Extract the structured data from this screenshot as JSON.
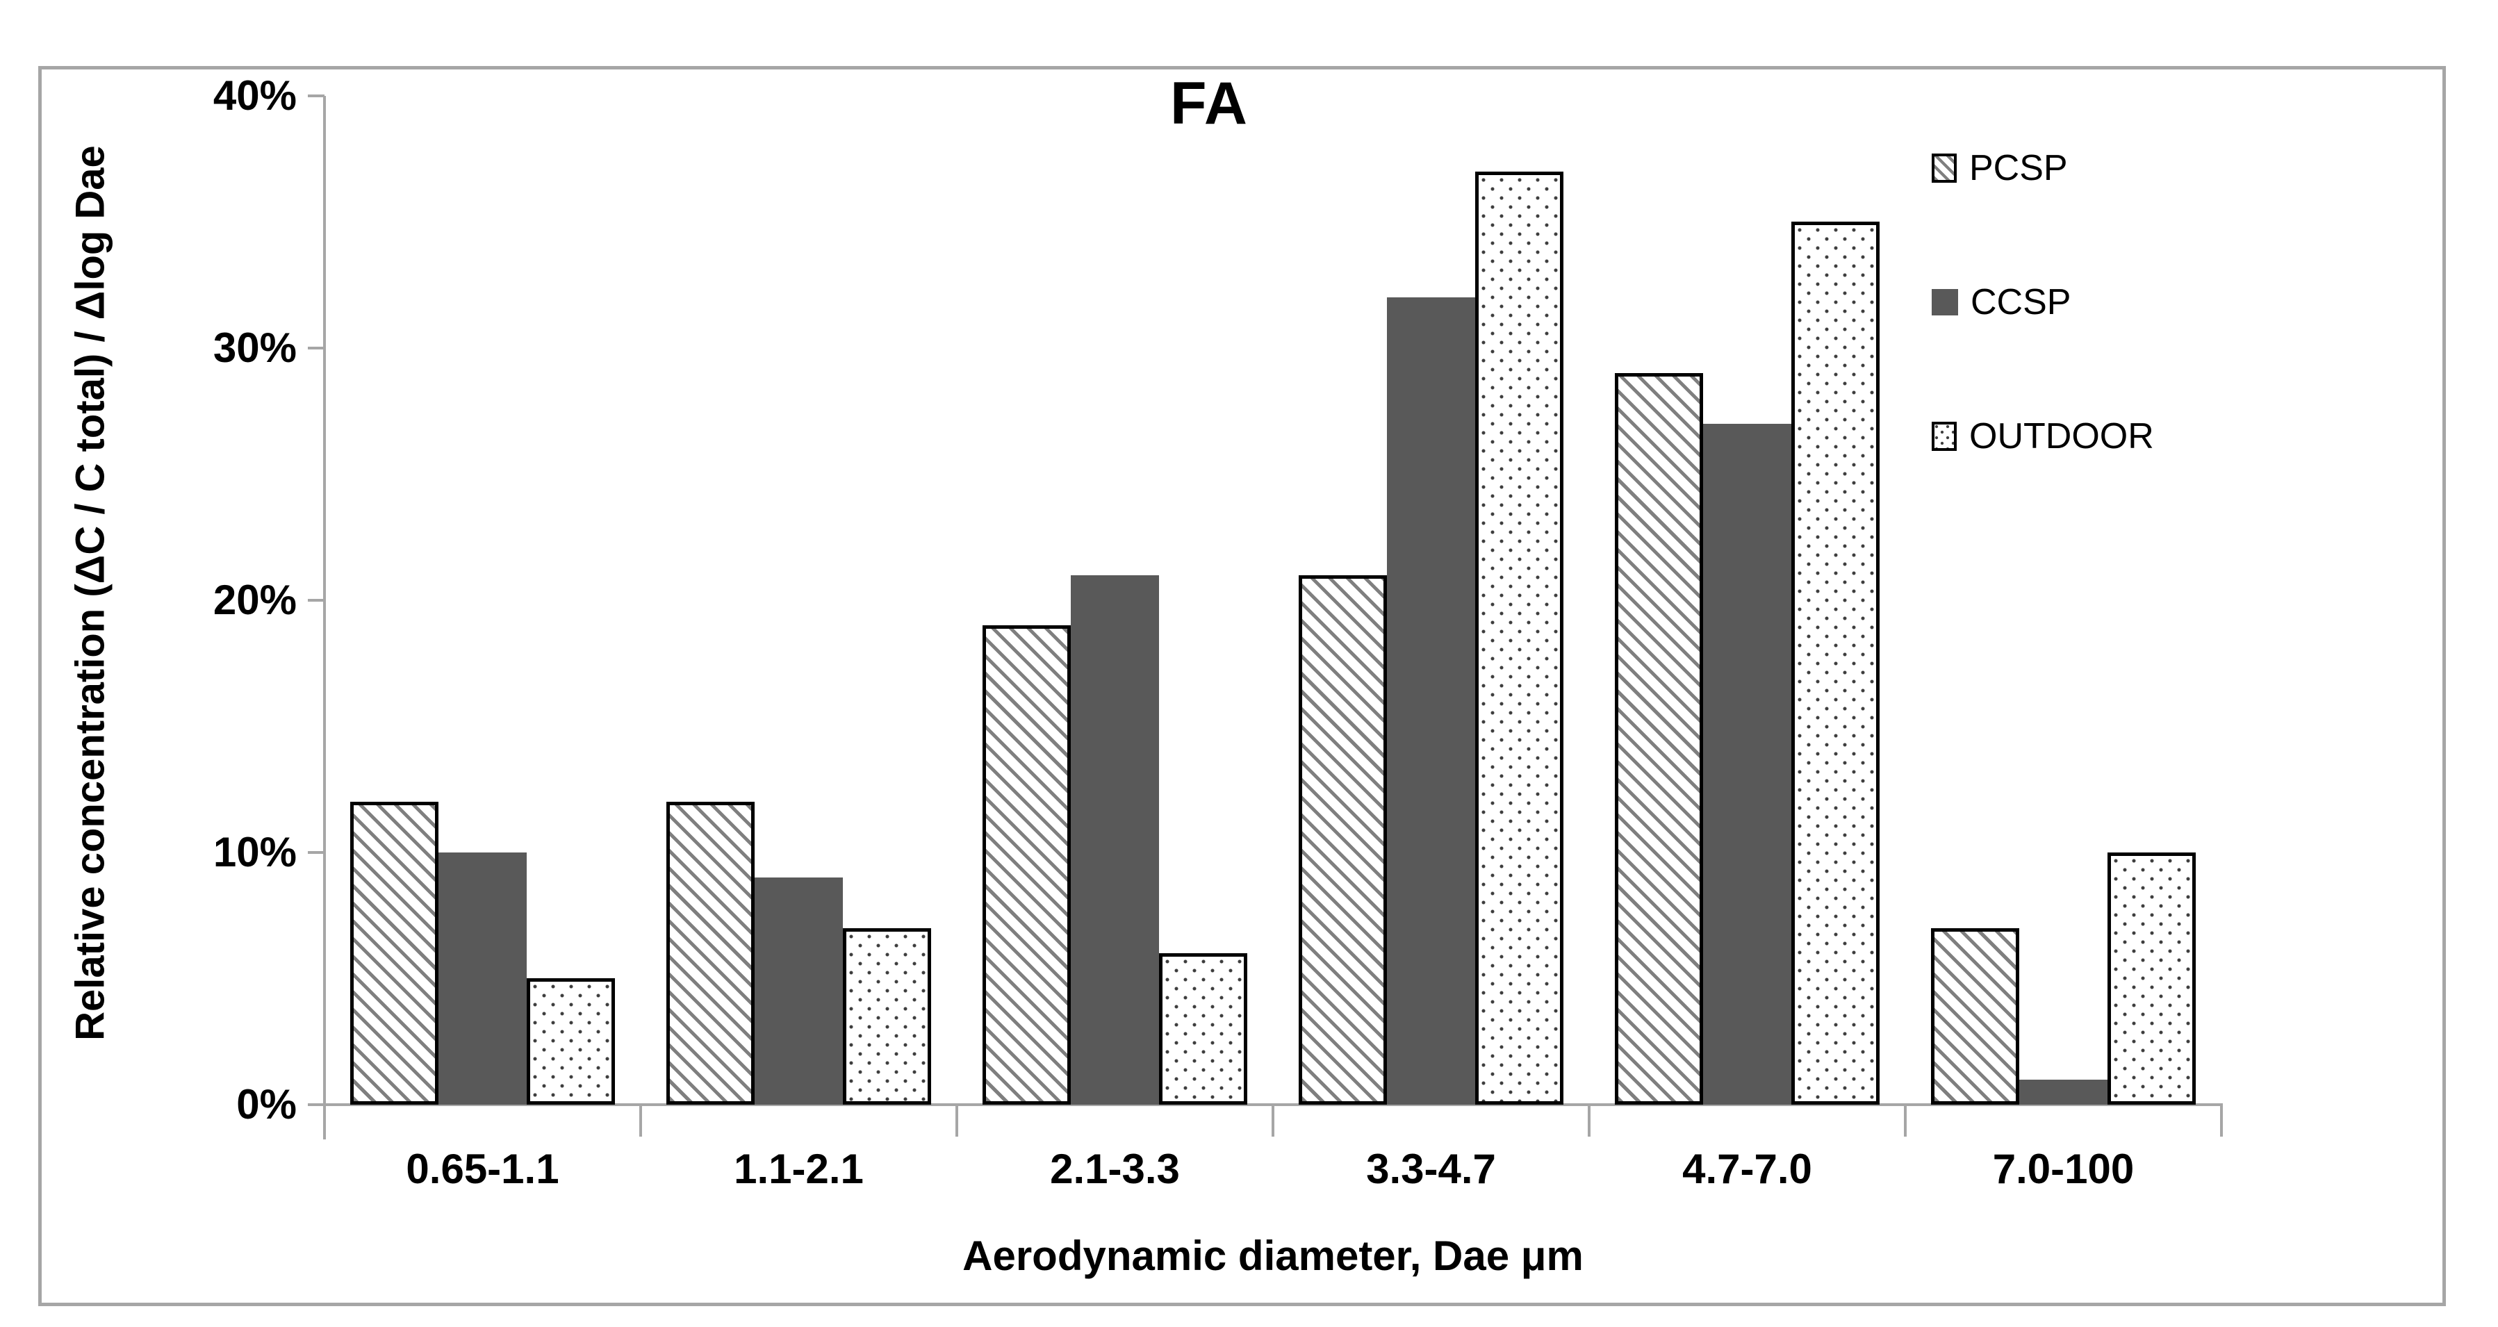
{
  "chart_data": {
    "type": "bar",
    "title": "FA",
    "categories": [
      "0.65-1.1",
      "1.1-2.1",
      "2.1-3.3",
      "3.3-4.7",
      "4.7-7.0",
      "7.0-100"
    ],
    "series": [
      {
        "name": "PCSP",
        "pattern": "diagonal-hatch",
        "values": [
          12,
          12,
          19,
          21,
          29,
          7
        ]
      },
      {
        "name": "CCSP",
        "pattern": "solid",
        "values": [
          10,
          9,
          21,
          32,
          27,
          1
        ]
      },
      {
        "name": "OUTDOOR",
        "pattern": "dots",
        "values": [
          5,
          7,
          6,
          37,
          35,
          10
        ]
      }
    ],
    "xlabel": "Aerodynamic diameter, Dae μm",
    "ylabel": "Relative concentration (ΔC / C total) / Δlog Dae",
    "ylim": [
      0,
      40
    ],
    "ytick_step": 10,
    "ytick_labels": [
      "0%",
      "10%",
      "20%",
      "30%",
      "40%"
    ],
    "grid": false,
    "legend_position": "right-inside",
    "colors": {
      "ccsp_fill": "#595959",
      "hatch_stroke": "#7f7f7f",
      "dot_color": "#3d3d3d",
      "bar_border": "#000000",
      "axis_line": "#a6a6a6",
      "frame_border": "#a6a6a6",
      "text": "#000000"
    }
  }
}
